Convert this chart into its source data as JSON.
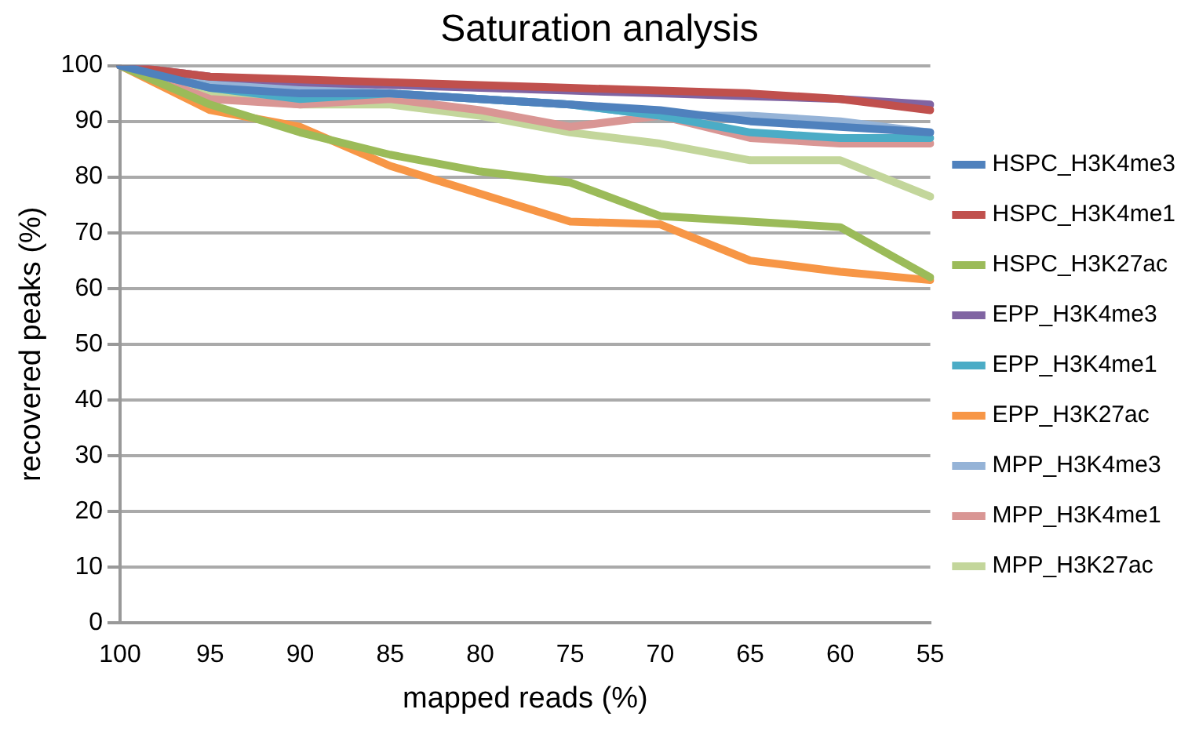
{
  "chart_data": {
    "type": "line",
    "title": "Saturation analysis",
    "xlabel": "mapped reads (%)",
    "ylabel": "recovered peaks (%)",
    "categories": [
      "100",
      "95",
      "90",
      "85",
      "80",
      "75",
      "70",
      "65",
      "60",
      "55"
    ],
    "ylim": [
      0,
      100
    ],
    "yticks": [
      0,
      10,
      20,
      30,
      40,
      50,
      60,
      70,
      80,
      90,
      100
    ],
    "grid": "y",
    "legend": "right",
    "marker": "none",
    "line_style": "solid",
    "series": [
      {
        "name": "HSPC_H3K4me3",
        "color": "#4f81bd",
        "values": [
          100,
          96,
          95,
          95,
          94,
          93,
          92,
          90,
          89,
          88
        ]
      },
      {
        "name": "HSPC_H3K4me1",
        "color": "#c0504d",
        "values": [
          100,
          98,
          97.5,
          97,
          96.5,
          96,
          95.5,
          95,
          94,
          92
        ]
      },
      {
        "name": "HSPC_H3K27ac",
        "color": "#9bbb59",
        "values": [
          100,
          93,
          88,
          84,
          81,
          79,
          73,
          72,
          71,
          62
        ]
      },
      {
        "name": "EPP_H3K4me3",
        "color": "#8064a2",
        "values": [
          100,
          98,
          97,
          96.5,
          96,
          95.5,
          95,
          94.5,
          94,
          93
        ]
      },
      {
        "name": "EPP_H3K4me1",
        "color": "#4bacc6",
        "values": [
          100,
          96,
          94,
          95,
          94,
          93,
          91,
          88,
          87,
          87
        ]
      },
      {
        "name": "EPP_H3K27ac",
        "color": "#f79646",
        "values": [
          100,
          92,
          89,
          82,
          77,
          72,
          71.5,
          65,
          63,
          61.5
        ]
      },
      {
        "name": "MPP_H3K4me3",
        "color": "#95b3d7",
        "values": [
          100,
          97,
          96,
          95,
          94,
          93,
          91,
          91,
          90,
          88
        ]
      },
      {
        "name": "MPP_H3K4me1",
        "color": "#d99694",
        "values": [
          100,
          94,
          93,
          94,
          92,
          89,
          91,
          87,
          86,
          86
        ]
      },
      {
        "name": "MPP_H3K27ac",
        "color": "#c3d69b",
        "values": [
          100,
          95,
          93,
          93,
          91,
          88,
          86,
          83,
          83,
          76.5
        ]
      }
    ]
  }
}
